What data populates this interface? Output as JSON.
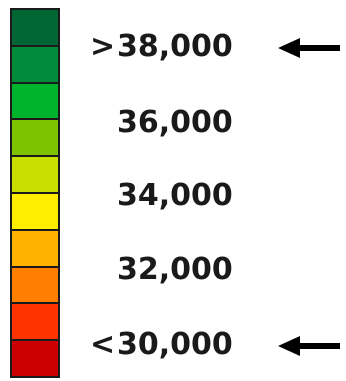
{
  "legend": {
    "swatches": [
      "#006633",
      "#008c3a",
      "#00b32d",
      "#7ec300",
      "#c8e000",
      "#ffee00",
      "#ffb300",
      "#ff7f00",
      "#ff3300",
      "#cc0000"
    ],
    "labels": [
      {
        "prefix": ">",
        "value": "38,000"
      },
      {
        "prefix": "",
        "value": "36,000"
      },
      {
        "prefix": "",
        "value": "34,000"
      },
      {
        "prefix": "",
        "value": "32,000"
      },
      {
        "prefix": "<",
        "value": "30,000"
      }
    ],
    "arrow_color": "#000000"
  }
}
